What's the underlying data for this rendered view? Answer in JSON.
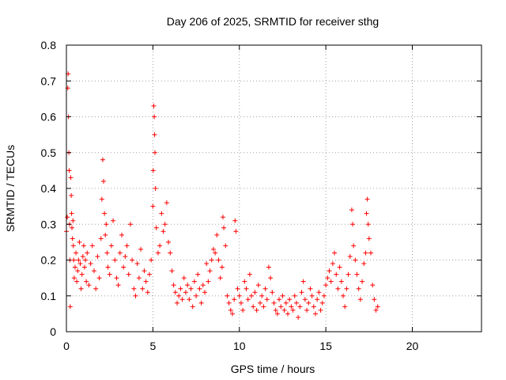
{
  "chart_data": {
    "type": "scatter",
    "title": "Day 206 of 2025, SRMTID for receiver sthg",
    "xlabel": "GPS time / hours",
    "ylabel": "SRMTID / TECUs",
    "xlim": [
      0,
      24
    ],
    "ylim": [
      0,
      0.8
    ],
    "x_ticks": [
      0,
      5,
      10,
      15,
      20
    ],
    "x_tick_labels": [
      "0",
      "5",
      "10",
      "15",
      "20"
    ],
    "y_ticks": [
      0,
      0.1,
      0.2,
      0.3,
      0.4,
      0.5,
      0.6,
      0.7,
      0.8
    ],
    "y_tick_labels": [
      "0",
      "0.1",
      "0.2",
      "0.3",
      "0.4",
      "0.5",
      "0.6",
      "0.7",
      "0.8"
    ],
    "grid": true,
    "marker": "plus",
    "color": "#ff0000",
    "series": [
      {
        "name": "SRMTID",
        "x": [
          0.0,
          0.05,
          0.08,
          0.1,
          0.12,
          0.14,
          0.16,
          0.18,
          0.2,
          0.22,
          0.25,
          0.28,
          0.3,
          0.32,
          0.35,
          0.38,
          0.4,
          0.42,
          0.45,
          0.5,
          0.55,
          0.6,
          0.65,
          0.7,
          0.75,
          0.8,
          0.85,
          0.9,
          0.95,
          1.0,
          1.05,
          1.1,
          1.15,
          1.2,
          1.3,
          1.4,
          1.5,
          1.6,
          1.7,
          1.8,
          1.9,
          2.0,
          2.05,
          2.1,
          2.15,
          2.2,
          2.25,
          2.3,
          2.35,
          2.4,
          2.5,
          2.6,
          2.7,
          2.8,
          2.9,
          3.0,
          3.1,
          3.2,
          3.3,
          3.4,
          3.5,
          3.6,
          3.7,
          3.8,
          3.9,
          4.0,
          4.1,
          4.2,
          4.3,
          4.4,
          4.5,
          4.6,
          4.7,
          4.8,
          4.9,
          5.0,
          5.02,
          5.05,
          5.08,
          5.1,
          5.12,
          5.15,
          5.2,
          5.3,
          5.4,
          5.5,
          5.6,
          5.7,
          5.8,
          5.9,
          6.0,
          6.1,
          6.2,
          6.3,
          6.4,
          6.5,
          6.6,
          6.7,
          6.8,
          6.9,
          7.0,
          7.1,
          7.2,
          7.3,
          7.4,
          7.5,
          7.6,
          7.7,
          7.8,
          7.9,
          8.0,
          8.1,
          8.2,
          8.3,
          8.4,
          8.5,
          8.6,
          8.7,
          8.8,
          8.9,
          9.0,
          9.05,
          9.1,
          9.2,
          9.3,
          9.4,
          9.5,
          9.6,
          9.7,
          9.75,
          9.8,
          9.9,
          10.0,
          10.1,
          10.2,
          10.3,
          10.4,
          10.5,
          10.6,
          10.7,
          10.8,
          10.9,
          11.0,
          11.1,
          11.2,
          11.3,
          11.4,
          11.5,
          11.6,
          11.7,
          11.8,
          11.9,
          12.0,
          12.1,
          12.2,
          12.3,
          12.4,
          12.5,
          12.6,
          12.7,
          12.8,
          12.9,
          13.0,
          13.1,
          13.2,
          13.3,
          13.4,
          13.5,
          13.6,
          13.7,
          13.8,
          13.9,
          14.0,
          14.1,
          14.2,
          14.3,
          14.4,
          14.5,
          14.6,
          14.7,
          14.8,
          14.9,
          15.0,
          15.1,
          15.2,
          15.3,
          15.4,
          15.5,
          15.6,
          15.7,
          15.8,
          15.9,
          16.0,
          16.1,
          16.2,
          16.3,
          16.4,
          16.5,
          16.55,
          16.6,
          16.7,
          16.8,
          16.9,
          17.0,
          17.1,
          17.2,
          17.3,
          17.35,
          17.4,
          17.45,
          17.5,
          17.6,
          17.7,
          17.8,
          17.9,
          18.0
        ],
        "y": [
          0.28,
          0.32,
          0.68,
          0.72,
          0.6,
          0.5,
          0.45,
          0.3,
          0.2,
          0.07,
          0.43,
          0.38,
          0.33,
          0.29,
          0.26,
          0.31,
          0.24,
          0.2,
          0.15,
          0.18,
          0.22,
          0.14,
          0.17,
          0.2,
          0.25,
          0.19,
          0.12,
          0.16,
          0.21,
          0.24,
          0.18,
          0.2,
          0.14,
          0.22,
          0.13,
          0.19,
          0.24,
          0.17,
          0.12,
          0.21,
          0.15,
          0.26,
          0.37,
          0.48,
          0.42,
          0.33,
          0.27,
          0.3,
          0.22,
          0.18,
          0.16,
          0.24,
          0.31,
          0.2,
          0.15,
          0.13,
          0.22,
          0.27,
          0.18,
          0.21,
          0.24,
          0.16,
          0.3,
          0.2,
          0.12,
          0.1,
          0.19,
          0.15,
          0.23,
          0.12,
          0.17,
          0.14,
          0.11,
          0.16,
          0.2,
          0.35,
          0.45,
          0.63,
          0.6,
          0.55,
          0.5,
          0.4,
          0.29,
          0.22,
          0.24,
          0.33,
          0.28,
          0.3,
          0.36,
          0.25,
          0.22,
          0.17,
          0.13,
          0.11,
          0.08,
          0.1,
          0.12,
          0.09,
          0.15,
          0.11,
          0.13,
          0.09,
          0.12,
          0.07,
          0.14,
          0.1,
          0.16,
          0.12,
          0.08,
          0.13,
          0.11,
          0.19,
          0.14,
          0.17,
          0.2,
          0.23,
          0.22,
          0.27,
          0.2,
          0.15,
          0.18,
          0.32,
          0.29,
          0.24,
          0.1,
          0.08,
          0.06,
          0.05,
          0.09,
          0.31,
          0.28,
          0.12,
          0.1,
          0.08,
          0.06,
          0.14,
          0.12,
          0.09,
          0.16,
          0.1,
          0.07,
          0.11,
          0.06,
          0.13,
          0.08,
          0.1,
          0.07,
          0.12,
          0.09,
          0.18,
          0.15,
          0.11,
          0.08,
          0.06,
          0.05,
          0.09,
          0.07,
          0.1,
          0.06,
          0.08,
          0.05,
          0.09,
          0.07,
          0.06,
          0.1,
          0.08,
          0.04,
          0.07,
          0.11,
          0.14,
          0.09,
          0.06,
          0.08,
          0.12,
          0.1,
          0.07,
          0.05,
          0.09,
          0.11,
          0.06,
          0.08,
          0.1,
          0.13,
          0.15,
          0.17,
          0.14,
          0.19,
          0.22,
          0.16,
          0.12,
          0.18,
          0.14,
          0.1,
          0.07,
          0.12,
          0.16,
          0.21,
          0.34,
          0.3,
          0.24,
          0.2,
          0.16,
          0.12,
          0.09,
          0.14,
          0.19,
          0.22,
          0.33,
          0.37,
          0.3,
          0.26,
          0.22,
          0.13,
          0.09,
          0.06,
          0.07
        ]
      }
    ]
  }
}
